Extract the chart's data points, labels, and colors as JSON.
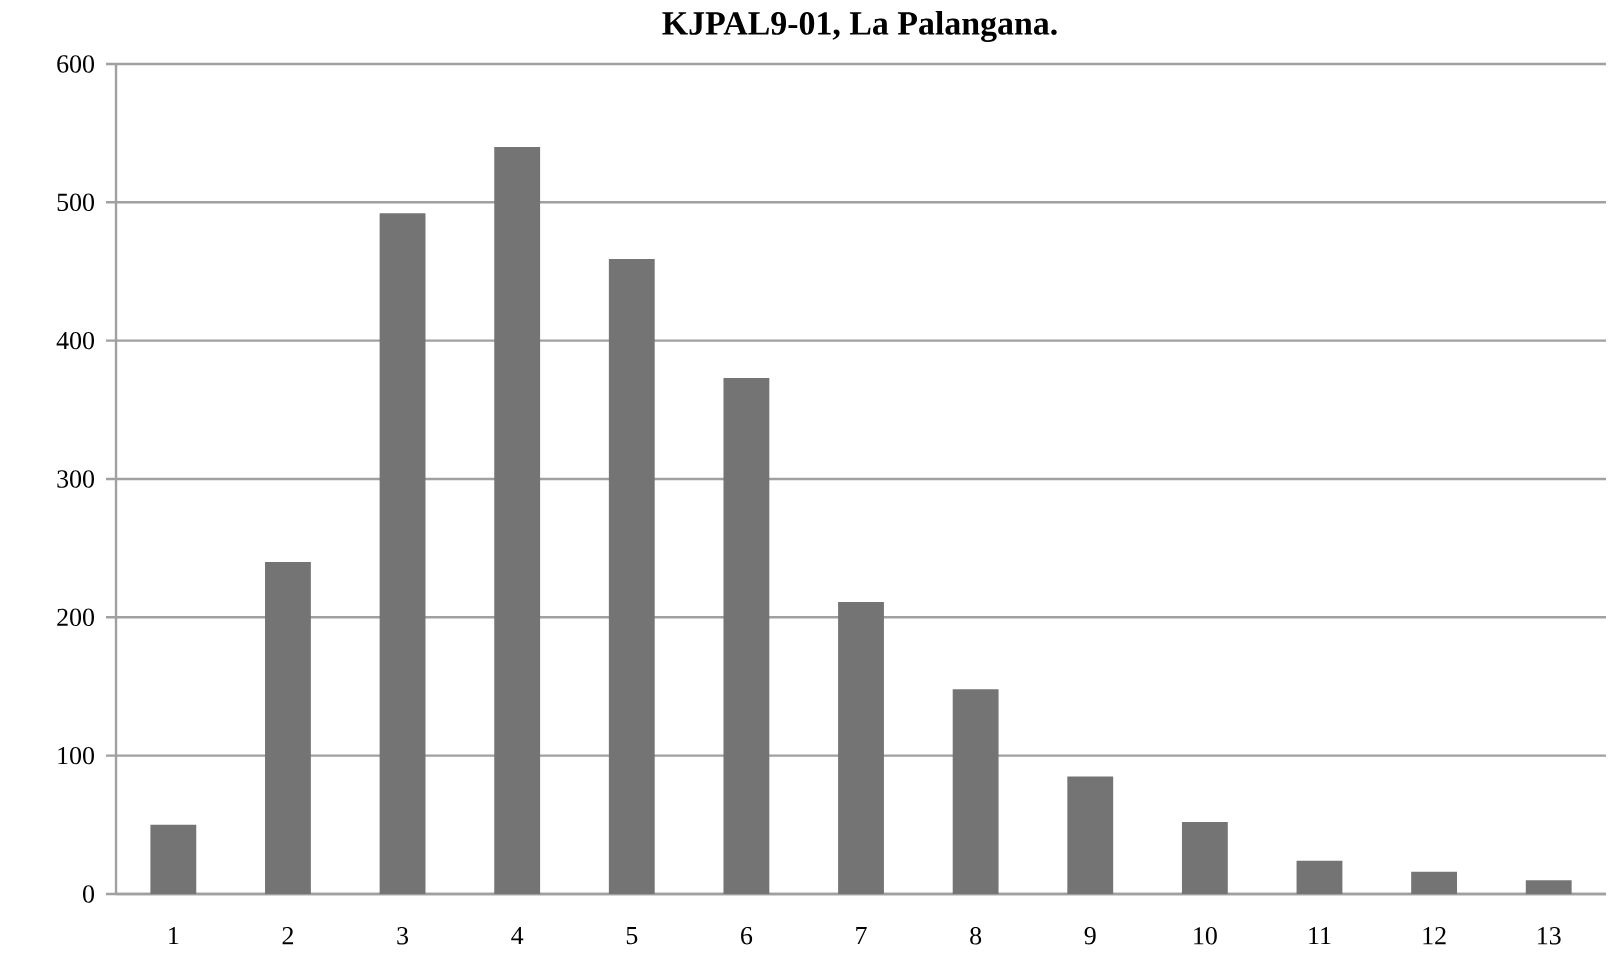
{
  "chart_data": {
    "type": "bar",
    "title": "**KJPAL9-01, La Palangana.**",
    "categories": [
      "1",
      "2",
      "3",
      "4",
      "5",
      "6",
      "7",
      "8",
      "9",
      "10",
      "11",
      "12",
      "13"
    ],
    "values": [
      50,
      240,
      492,
      540,
      459,
      373,
      211,
      148,
      85,
      52,
      24,
      16,
      10
    ],
    "color": "#747474",
    "ylim": [
      0,
      600
    ],
    "yticks": [
      0,
      100,
      200,
      300,
      400,
      500,
      600
    ],
    "grid": "y"
  }
}
